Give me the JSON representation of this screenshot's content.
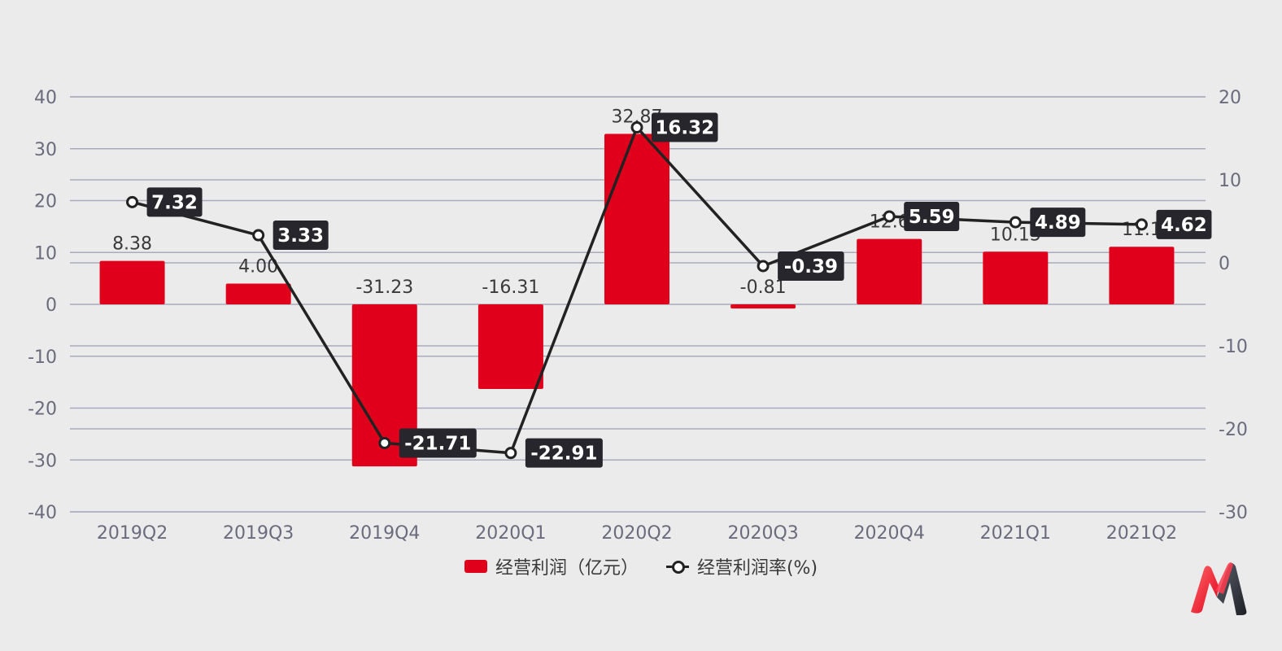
{
  "chart_data": {
    "type": "bar",
    "categories": [
      "2019Q2",
      "2019Q3",
      "2019Q4",
      "2020Q1",
      "2020Q2",
      "2020Q3",
      "2020Q4",
      "2021Q1",
      "2021Q2"
    ],
    "series": [
      {
        "name": "经营利润（亿元）",
        "type": "bar",
        "axis": "left",
        "values": [
          8.38,
          4.0,
          -31.23,
          -16.31,
          32.87,
          -0.81,
          12.6,
          10.15,
          11.1
        ],
        "labels": [
          "8.38",
          "4.00",
          "-31.23",
          "-16.31",
          "32.87",
          "-0.81",
          "12.6",
          "10.15",
          "11.1"
        ],
        "color": "#e0001b"
      },
      {
        "name": "经营利润率(%)",
        "type": "line",
        "axis": "right",
        "values": [
          7.32,
          3.33,
          -21.71,
          -22.91,
          16.32,
          -0.39,
          5.59,
          4.89,
          4.62
        ],
        "labels": [
          "7.32",
          "3.33",
          "-21.71",
          "-22.91",
          "16.32",
          "-0.39",
          "5.59",
          "4.89",
          "4.62"
        ],
        "color": "#222222"
      }
    ],
    "y_left": {
      "ylim": [
        -40,
        40
      ],
      "ticks": [
        "-40",
        "-30",
        "-20",
        "-10",
        "0",
        "10",
        "20",
        "30",
        "40"
      ]
    },
    "y_right": {
      "ylim": [
        -30,
        20
      ],
      "ticks": [
        "-30",
        "-20",
        "-10",
        "0",
        "10",
        "20"
      ]
    },
    "grid": true,
    "legend_position": "bottom"
  },
  "legend": {
    "bar_label": "经营利润（亿元）",
    "line_label": "经营利润率(%)"
  },
  "logo_icon": "brand-logo-icon"
}
